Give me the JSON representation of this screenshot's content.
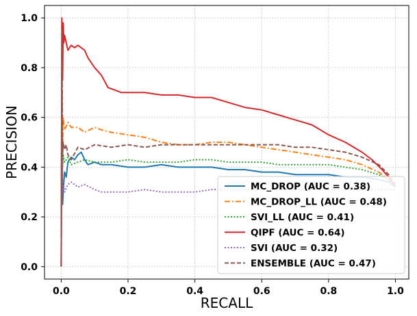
{
  "chart_data": {
    "type": "line",
    "title": "",
    "xlabel": "RECALL",
    "ylabel": "PRECISION",
    "xlim": [
      -0.05,
      1.04
    ],
    "ylim": [
      -0.05,
      1.05
    ],
    "xticks": [
      0.0,
      0.2,
      0.4,
      0.6,
      0.8,
      1.0
    ],
    "xtick_labels": [
      "0.0",
      "0.2",
      "0.4",
      "0.6",
      "0.8",
      "1.0"
    ],
    "yticks": [
      0.0,
      0.2,
      0.4,
      0.6,
      0.8,
      1.0
    ],
    "ytick_labels": [
      "0.0",
      "0.2",
      "0.4",
      "0.6",
      "0.8",
      "1.0"
    ],
    "grid": true,
    "legend_position": "lower-right",
    "series": [
      {
        "name": "MC_DROP (AUC = 0.38)",
        "color": "#1f77b4",
        "style": "solid",
        "x": [
          0.0,
          0.002,
          0.004,
          0.006,
          0.01,
          0.015,
          0.02,
          0.03,
          0.04,
          0.05,
          0.06,
          0.07,
          0.08,
          0.1,
          0.12,
          0.15,
          0.2,
          0.25,
          0.3,
          0.35,
          0.4,
          0.45,
          0.5,
          0.55,
          0.6,
          0.65,
          0.7,
          0.75,
          0.8,
          0.85,
          0.9,
          0.95,
          0.98,
          1.0
        ],
        "y": [
          0.0,
          0.6,
          0.25,
          0.3,
          0.38,
          0.36,
          0.42,
          0.44,
          0.43,
          0.45,
          0.46,
          0.43,
          0.41,
          0.42,
          0.41,
          0.41,
          0.4,
          0.4,
          0.41,
          0.4,
          0.4,
          0.4,
          0.39,
          0.39,
          0.38,
          0.38,
          0.37,
          0.37,
          0.37,
          0.36,
          0.36,
          0.35,
          0.34,
          0.32
        ]
      },
      {
        "name": "MC_DROP_LL (AUC = 0.48)",
        "color": "#ff7f0e",
        "style": "dashdot",
        "x": [
          0.0,
          0.002,
          0.004,
          0.006,
          0.01,
          0.02,
          0.03,
          0.05,
          0.07,
          0.1,
          0.12,
          0.15,
          0.2,
          0.25,
          0.3,
          0.35,
          0.4,
          0.45,
          0.5,
          0.55,
          0.6,
          0.65,
          0.7,
          0.75,
          0.8,
          0.85,
          0.9,
          0.95,
          0.98,
          1.0
        ],
        "y": [
          0.0,
          0.9,
          0.5,
          0.6,
          0.55,
          0.58,
          0.56,
          0.56,
          0.54,
          0.56,
          0.55,
          0.54,
          0.53,
          0.52,
          0.5,
          0.49,
          0.49,
          0.5,
          0.5,
          0.49,
          0.48,
          0.47,
          0.46,
          0.45,
          0.44,
          0.43,
          0.41,
          0.38,
          0.35,
          0.32
        ]
      },
      {
        "name": "SVI_LL (AUC = 0.41)",
        "color": "#2ca02c",
        "style": "dotted",
        "x": [
          0.0,
          0.002,
          0.004,
          0.006,
          0.01,
          0.02,
          0.03,
          0.05,
          0.07,
          0.1,
          0.15,
          0.2,
          0.25,
          0.3,
          0.35,
          0.4,
          0.45,
          0.5,
          0.55,
          0.6,
          0.65,
          0.7,
          0.75,
          0.8,
          0.85,
          0.9,
          0.95,
          0.98,
          1.0
        ],
        "y": [
          0.0,
          0.75,
          0.4,
          0.45,
          0.42,
          0.44,
          0.41,
          0.42,
          0.43,
          0.42,
          0.42,
          0.43,
          0.42,
          0.42,
          0.42,
          0.43,
          0.43,
          0.42,
          0.42,
          0.42,
          0.41,
          0.41,
          0.41,
          0.41,
          0.4,
          0.39,
          0.37,
          0.35,
          0.32
        ]
      },
      {
        "name": "QIPF (AUC = 0.64)",
        "color": "#d62728",
        "style": "solid",
        "x": [
          0.0,
          0.002,
          0.004,
          0.006,
          0.008,
          0.01,
          0.02,
          0.03,
          0.04,
          0.05,
          0.06,
          0.07,
          0.08,
          0.1,
          0.12,
          0.14,
          0.16,
          0.18,
          0.2,
          0.25,
          0.3,
          0.35,
          0.4,
          0.45,
          0.5,
          0.55,
          0.6,
          0.65,
          0.7,
          0.75,
          0.8,
          0.85,
          0.9,
          0.93,
          0.96,
          0.98,
          1.0
        ],
        "y": [
          0.0,
          1.0,
          0.75,
          0.98,
          0.9,
          0.93,
          0.87,
          0.89,
          0.88,
          0.89,
          0.88,
          0.87,
          0.84,
          0.8,
          0.77,
          0.72,
          0.71,
          0.7,
          0.7,
          0.7,
          0.69,
          0.69,
          0.68,
          0.68,
          0.66,
          0.64,
          0.63,
          0.61,
          0.59,
          0.57,
          0.53,
          0.5,
          0.46,
          0.43,
          0.39,
          0.36,
          0.32
        ]
      },
      {
        "name": "SVI (AUC = 0.32)",
        "color": "#9467bd",
        "style": "dotted",
        "x": [
          0.0,
          0.002,
          0.004,
          0.006,
          0.01,
          0.02,
          0.03,
          0.05,
          0.07,
          0.1,
          0.12,
          0.15,
          0.2,
          0.25,
          0.3,
          0.35,
          0.4,
          0.45,
          0.5,
          0.55,
          0.6,
          0.65,
          0.7,
          0.75,
          0.8,
          0.85,
          0.9,
          0.95,
          1.0
        ],
        "y": [
          0.0,
          0.82,
          0.3,
          0.33,
          0.3,
          0.33,
          0.34,
          0.32,
          0.33,
          0.31,
          0.3,
          0.3,
          0.3,
          0.31,
          0.3,
          0.3,
          0.3,
          0.31,
          0.31,
          0.31,
          0.31,
          0.31,
          0.31,
          0.31,
          0.31,
          0.31,
          0.31,
          0.31,
          0.31
        ]
      },
      {
        "name": "ENSEMBLE (AUC = 0.47)",
        "color": "#8c564b",
        "style": "dashed",
        "x": [
          0.0,
          0.002,
          0.004,
          0.006,
          0.01,
          0.015,
          0.02,
          0.03,
          0.05,
          0.07,
          0.1,
          0.15,
          0.2,
          0.25,
          0.3,
          0.35,
          0.4,
          0.45,
          0.5,
          0.55,
          0.6,
          0.65,
          0.7,
          0.75,
          0.8,
          0.85,
          0.9,
          0.95,
          0.98,
          1.0
        ],
        "y": [
          0.0,
          0.95,
          0.45,
          0.5,
          0.47,
          0.49,
          0.45,
          0.43,
          0.48,
          0.47,
          0.49,
          0.48,
          0.49,
          0.48,
          0.49,
          0.49,
          0.49,
          0.49,
          0.49,
          0.49,
          0.49,
          0.49,
          0.48,
          0.48,
          0.47,
          0.46,
          0.44,
          0.41,
          0.37,
          0.33
        ]
      }
    ]
  }
}
